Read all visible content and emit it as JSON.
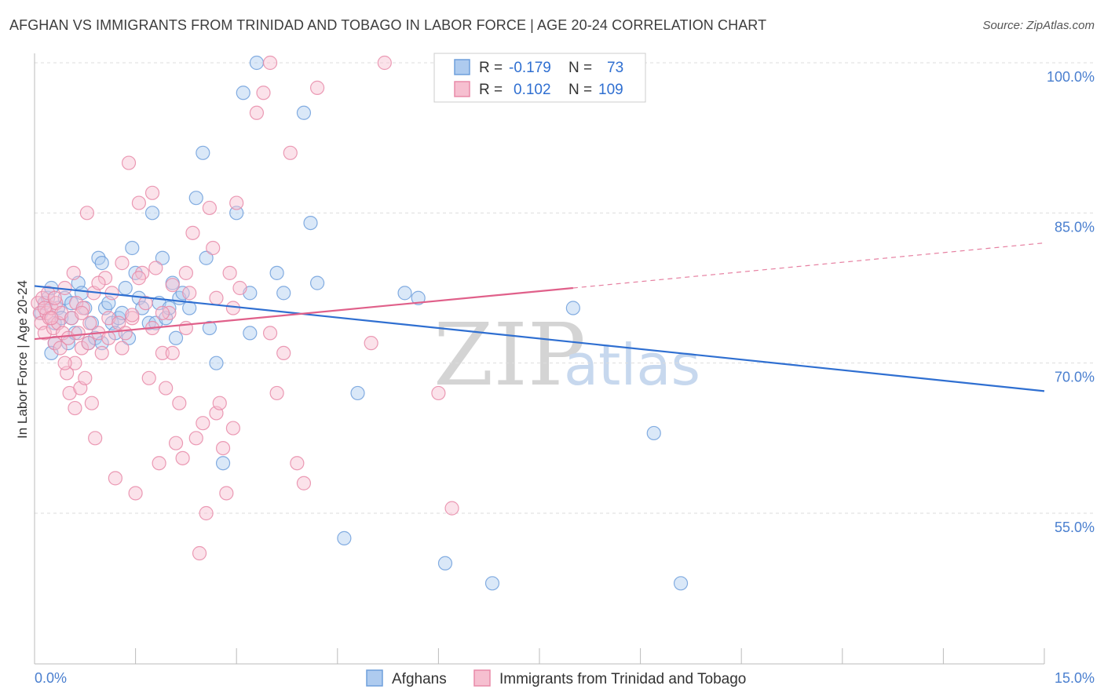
{
  "title": "AFGHAN VS IMMIGRANTS FROM TRINIDAD AND TOBAGO IN LABOR FORCE | AGE 20-24 CORRELATION CHART",
  "source": "Source: ZipAtlas.com",
  "watermark": {
    "zip": "ZIP",
    "atlas": "atlas"
  },
  "legend_box": {
    "rows": [
      {
        "r_label": "R =",
        "r_value": "-0.179",
        "n_label": "N =",
        "n_value": "73",
        "color": "#aecbef",
        "stroke": "#6f9fdc"
      },
      {
        "r_label": "R =",
        "r_value": "0.102",
        "n_label": "N =",
        "n_value": "109",
        "color": "#f6bfd0",
        "stroke": "#e88aa8"
      }
    ]
  },
  "bottom_legend": [
    {
      "label": "Afghans",
      "color": "#aecbef",
      "stroke": "#6f9fdc"
    },
    {
      "label": "Immigrants from Trinidad and Tobago",
      "color": "#f6bfd0",
      "stroke": "#e88aa8"
    }
  ],
  "chart_data": {
    "type": "scatter",
    "title": "AFGHAN VS IMMIGRANTS FROM TRINIDAD AND TOBAGO IN LABOR FORCE | AGE 20-24 CORRELATION CHART",
    "xlabel": "",
    "ylabel": "In Labor Force | Age 20-24",
    "xlim": [
      0,
      15
    ],
    "ylim": [
      40,
      102
    ],
    "x_tick_labels": [
      "0.0%",
      "15.0%"
    ],
    "y_ticks": [
      100,
      85,
      70,
      55
    ],
    "y_tick_labels": [
      "100.0%",
      "85.0%",
      "70.0%",
      "55.0%"
    ],
    "grid": true,
    "series": [
      {
        "name": "Afghans",
        "color": "#6f9fdc",
        "fill": "#aecbef",
        "trend": {
          "x": [
            0.0,
            15.0
          ],
          "y": [
            77.7,
            67.2
          ],
          "style": "solid",
          "color": "#2f6fd1"
        },
        "points": [
          [
            0.1,
            75
          ],
          [
            0.15,
            76
          ],
          [
            0.2,
            76.5
          ],
          [
            0.25,
            77.5
          ],
          [
            0.3,
            74
          ],
          [
            0.3,
            72
          ],
          [
            0.35,
            75.5
          ],
          [
            0.4,
            74.5
          ],
          [
            0.45,
            76.5
          ],
          [
            0.5,
            72
          ],
          [
            0.55,
            74.5
          ],
          [
            0.6,
            73
          ],
          [
            0.65,
            78
          ],
          [
            0.7,
            77
          ],
          [
            0.75,
            75.5
          ],
          [
            0.8,
            72
          ],
          [
            0.85,
            74
          ],
          [
            0.9,
            72.5
          ],
          [
            0.95,
            80.5
          ],
          [
            1.0,
            80
          ],
          [
            1.05,
            75.5
          ],
          [
            1.1,
            76
          ],
          [
            1.15,
            74
          ],
          [
            1.2,
            73
          ],
          [
            1.25,
            74.5
          ],
          [
            1.3,
            75
          ],
          [
            1.35,
            77.5
          ],
          [
            1.4,
            72.5
          ],
          [
            1.45,
            81.5
          ],
          [
            1.5,
            79
          ],
          [
            1.55,
            76.5
          ],
          [
            1.6,
            75.5
          ],
          [
            1.7,
            74
          ],
          [
            1.75,
            85
          ],
          [
            1.8,
            74
          ],
          [
            1.85,
            76
          ],
          [
            1.95,
            74.5
          ],
          [
            2.0,
            75.5
          ],
          [
            2.05,
            78
          ],
          [
            2.1,
            72.5
          ],
          [
            2.15,
            76.5
          ],
          [
            2.2,
            77
          ],
          [
            2.3,
            75.5
          ],
          [
            2.4,
            86.5
          ],
          [
            2.5,
            91
          ],
          [
            2.55,
            80.5
          ],
          [
            2.7,
            70
          ],
          [
            2.8,
            60
          ],
          [
            3.0,
            85
          ],
          [
            3.1,
            97
          ],
          [
            3.2,
            77
          ],
          [
            3.3,
            100
          ],
          [
            3.6,
            79
          ],
          [
            3.7,
            77
          ],
          [
            4.0,
            95
          ],
          [
            4.1,
            84
          ],
          [
            4.2,
            78
          ],
          [
            4.6,
            52.5
          ],
          [
            4.8,
            67
          ],
          [
            5.5,
            77
          ],
          [
            5.7,
            76.5
          ],
          [
            6.1,
            50
          ],
          [
            6.8,
            48
          ],
          [
            8.0,
            75.5
          ],
          [
            9.2,
            63
          ],
          [
            9.6,
            48
          ],
          [
            7.4,
            100
          ],
          [
            1.9,
            80.5
          ],
          [
            0.25,
            71
          ],
          [
            0.55,
            76
          ],
          [
            1.0,
            72
          ],
          [
            2.6,
            73.5
          ],
          [
            3.2,
            73
          ]
        ]
      },
      {
        "name": "Immigrants from Trinidad and Tobago",
        "color": "#e88aa8",
        "fill": "#f6bfd0",
        "trend": {
          "x": [
            0.0,
            8.0,
            15.0
          ],
          "y": [
            72.4,
            77.5,
            82.0
          ],
          "style": "solid-then-dashed",
          "solid_until": 8.0,
          "color": "#e0608a"
        },
        "points": [
          [
            0.05,
            76
          ],
          [
            0.08,
            75
          ],
          [
            0.1,
            74
          ],
          [
            0.12,
            76.5
          ],
          [
            0.15,
            73
          ],
          [
            0.18,
            75
          ],
          [
            0.2,
            77
          ],
          [
            0.22,
            74.5
          ],
          [
            0.25,
            75.5
          ],
          [
            0.28,
            73.5
          ],
          [
            0.3,
            72
          ],
          [
            0.32,
            76
          ],
          [
            0.35,
            74
          ],
          [
            0.38,
            71.5
          ],
          [
            0.4,
            75
          ],
          [
            0.42,
            73
          ],
          [
            0.45,
            77.5
          ],
          [
            0.48,
            69
          ],
          [
            0.5,
            72.5
          ],
          [
            0.52,
            67
          ],
          [
            0.55,
            74.5
          ],
          [
            0.58,
            79
          ],
          [
            0.6,
            70
          ],
          [
            0.62,
            76
          ],
          [
            0.65,
            73
          ],
          [
            0.68,
            67.5
          ],
          [
            0.7,
            71.5
          ],
          [
            0.72,
            75.5
          ],
          [
            0.75,
            68.5
          ],
          [
            0.78,
            85
          ],
          [
            0.8,
            72
          ],
          [
            0.82,
            74
          ],
          [
            0.85,
            66
          ],
          [
            0.88,
            77
          ],
          [
            0.9,
            62.5
          ],
          [
            0.95,
            73
          ],
          [
            1.0,
            71
          ],
          [
            1.05,
            78.5
          ],
          [
            1.1,
            74.5
          ],
          [
            1.15,
            77
          ],
          [
            1.2,
            58.5
          ],
          [
            1.25,
            74
          ],
          [
            1.3,
            80
          ],
          [
            1.35,
            73
          ],
          [
            1.4,
            90
          ],
          [
            1.45,
            74.5
          ],
          [
            1.5,
            57
          ],
          [
            1.55,
            86
          ],
          [
            1.6,
            79
          ],
          [
            1.65,
            76
          ],
          [
            1.7,
            68.5
          ],
          [
            1.75,
            73.5
          ],
          [
            1.8,
            79.5
          ],
          [
            1.85,
            60
          ],
          [
            1.9,
            71
          ],
          [
            1.95,
            67.5
          ],
          [
            2.0,
            75
          ],
          [
            2.05,
            71
          ],
          [
            2.1,
            62
          ],
          [
            2.15,
            66
          ],
          [
            2.2,
            60.5
          ],
          [
            2.25,
            79
          ],
          [
            2.3,
            77
          ],
          [
            2.35,
            83
          ],
          [
            2.4,
            62.5
          ],
          [
            2.45,
            51
          ],
          [
            2.5,
            64
          ],
          [
            2.55,
            55
          ],
          [
            2.6,
            85.5
          ],
          [
            2.65,
            81.5
          ],
          [
            2.7,
            65
          ],
          [
            2.75,
            66
          ],
          [
            2.8,
            61.5
          ],
          [
            2.85,
            57
          ],
          [
            2.9,
            79
          ],
          [
            2.95,
            75.5
          ],
          [
            3.0,
            86
          ],
          [
            3.3,
            95
          ],
          [
            3.4,
            97
          ],
          [
            3.5,
            100
          ],
          [
            3.6,
            67
          ],
          [
            3.7,
            71
          ],
          [
            3.8,
            91
          ],
          [
            3.9,
            60
          ],
          [
            4.0,
            58
          ],
          [
            4.2,
            97.5
          ],
          [
            5.0,
            72
          ],
          [
            6.0,
            67
          ],
          [
            6.2,
            55.5
          ],
          [
            5.2,
            100
          ],
          [
            0.95,
            78
          ],
          [
            1.55,
            78.5
          ],
          [
            0.3,
            76.5
          ],
          [
            0.7,
            75
          ],
          [
            2.25,
            73.5
          ],
          [
            0.15,
            75.5
          ],
          [
            1.1,
            72.5
          ],
          [
            1.9,
            75
          ],
          [
            2.7,
            76.5
          ],
          [
            0.45,
            70
          ],
          [
            1.3,
            71.5
          ],
          [
            3.05,
            77.5
          ],
          [
            1.75,
            87
          ],
          [
            0.6,
            65.5
          ],
          [
            2.95,
            63.5
          ],
          [
            3.5,
            73
          ],
          [
            1.45,
            74.8
          ],
          [
            0.25,
            74.5
          ],
          [
            2.05,
            77.8
          ]
        ]
      }
    ]
  }
}
